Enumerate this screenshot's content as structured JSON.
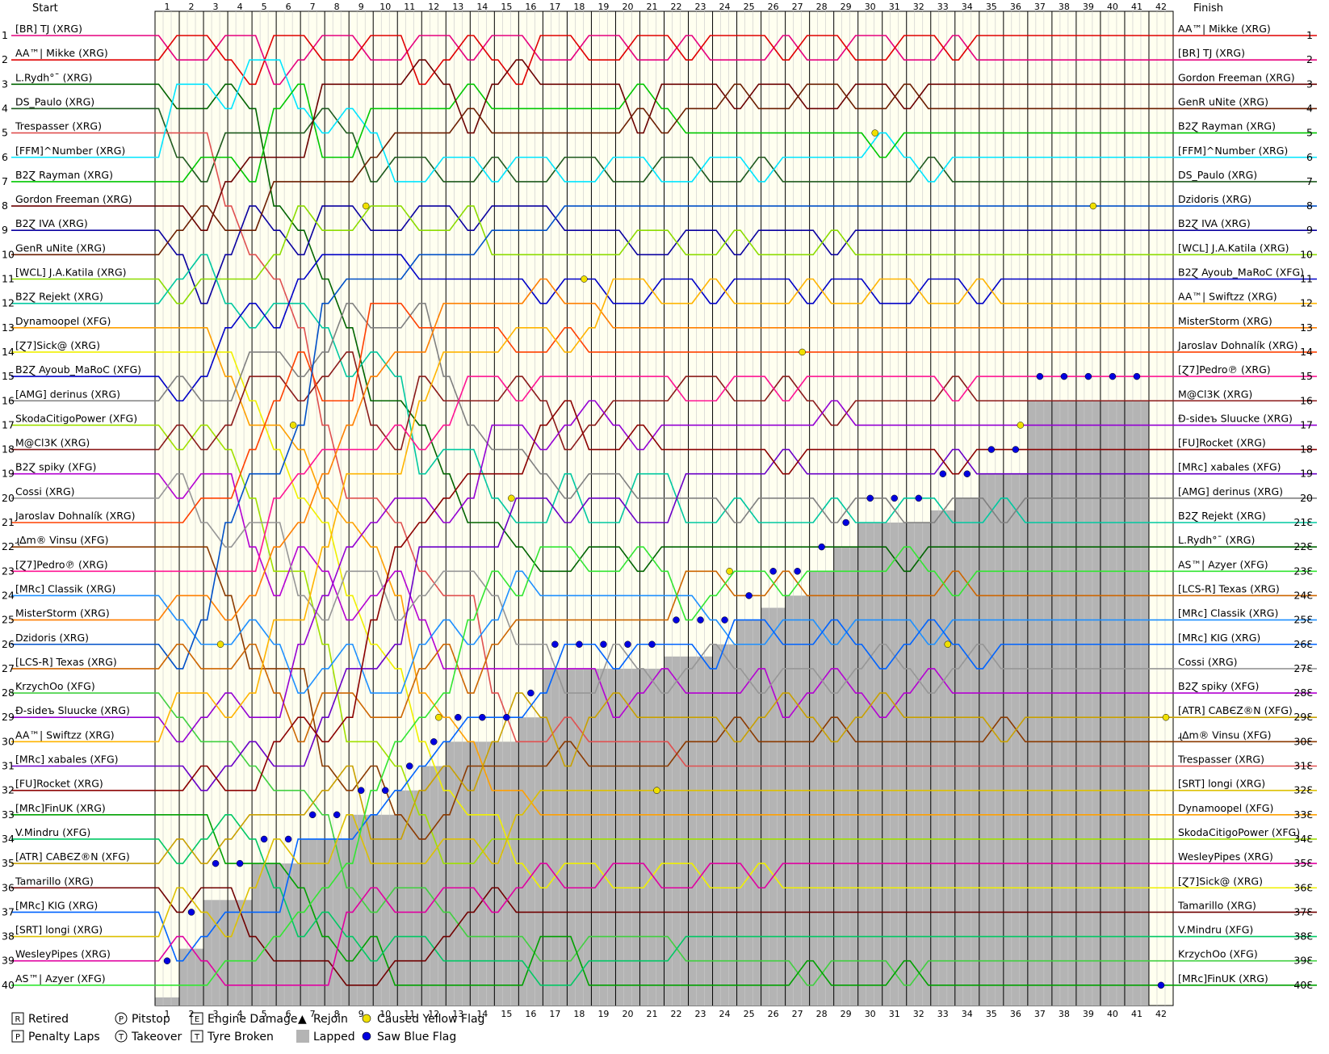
{
  "chart_data": {
    "type": "line",
    "headers": {
      "start": "Start",
      "finish": "Finish"
    },
    "laps": 42,
    "positions": 40,
    "start_order": [
      "[BR] TJ (XRG)",
      "AA™| Mikke (XRG)",
      "L.Rydh°¯ (XRG)",
      "DS_Paulo (XRG)",
      "Trespasser (XRG)",
      "[FFM]^Number (XRG)",
      "B2Ɀ Rayman (XRG)",
      "Gordon Freeman (XRG)",
      "B2Ɀ IVA (XRG)",
      "GenR uNite (XRG)",
      "[WCL] J.A.Katila (XRG)",
      "B2Ɀ Rejekt (XRG)",
      "Dynamoopel (XFG)",
      "[Ɀ7]Sick@ (XRG)",
      "B2Ɀ Ayoub_MaRoC (XFG)",
      "[AMG] derinus (XRG)",
      "SkodaCitigoPower (XFG)",
      "M@Cl3K (XRG)",
      "B2Ɀ spiky (XFG)",
      "Cossi (XRG)",
      "Jaroslav Dohnalík (XRG)",
      "ɻ∆m® Vinsu (XFG)",
      "[Ɀ7]Pedro℗ (XRG)",
      "[MRc] Classik (XRG)",
      "MisterStorm (XRG)",
      "Dzidoris (XRG)",
      "[LCS-R] Texas (XRG)",
      "KrzychOo (XFG)",
      "Đ-sideъ Sluucke (XRG)",
      "AA™| Swiftzz (XRG)",
      "[MRc] xabales (XFG)",
      "[FU]Rocket (XRG)",
      "[MRc]FinUK (XRG)",
      "V.Mindru (XFG)",
      "[ATR] CABЄZ®N (XFG)",
      "Tamarillo (XRG)",
      "[MRc] KIG (XRG)",
      "[SRT] longi (XRG)",
      "WesleyPipes (XRG)",
      "AS™| Azyer (XFG)"
    ],
    "finish_order": [
      "AA™| Mikke (XRG)",
      "[BR] TJ (XRG)",
      "Gordon Freeman (XRG)",
      "GenR uNite (XRG)",
      "B2Ɀ Rayman (XRG)",
      "[FFM]^Number (XRG)",
      "DS_Paulo (XRG)",
      "Dzidoris (XRG)",
      "B2Ɀ IVA (XRG)",
      "[WCL] J.A.Katila (XRG)",
      "B2Ɀ Ayoub_MaRoC (XFG)",
      "AA™| Swiftzz (XRG)",
      "MisterStorm (XRG)",
      "Jaroslav Dohnalík (XRG)",
      "[Ɀ7]Pedro℗ (XRG)",
      "M@Cl3K (XRG)",
      "Đ-sideъ Sluucke (XRG)",
      "[FU]Rocket (XRG)",
      "[MRc] xabales (XFG)",
      "[AMG] derinus (XRG)",
      "B2Ɀ Rejekt (XRG)",
      "L.Rydh°¯ (XRG)",
      "AS™| Azyer (XFG)",
      "[LCS-R] Texas (XRG)",
      "[MRc] Classik (XRG)",
      "[MRc] KIG (XRG)",
      "Cossi (XRG)",
      "B2Ɀ spiky (XFG)",
      "[ATR] CABЄZ®N (XFG)",
      "ɻ∆m® Vinsu (XFG)",
      "Trespasser (XRG)",
      "[SRT] longi (XRG)",
      "Dynamoopel (XFG)",
      "SkodaCitigoPower (XFG)",
      "WesleyPipes (XRG)",
      "[Ɀ7]Sick@ (XRG)",
      "Tamarillo (XRG)",
      "V.Mindru (XFG)",
      "KrzychOo (XFG)",
      "[MRc]FinUK (XRG)"
    ],
    "finish_pos_labels": [
      "1",
      "2",
      "3",
      "4",
      "5",
      "6",
      "7",
      "8",
      "9",
      "10",
      "11",
      "12",
      "13",
      "14",
      "15",
      "16",
      "17",
      "18",
      "19",
      "20",
      "21Ɛ",
      "22Ɛ",
      "23Ɛ",
      "24Ɛ",
      "25Ɛ",
      "26Ɛ",
      "27Ɛ",
      "28Ɛ",
      "29Ɛ",
      "30Ɛ",
      "31Ɛ",
      "32Ɛ",
      "33Ɛ",
      "34Ɛ",
      "35Ɛ",
      "36Ɛ",
      "37Ɛ",
      "38Ɛ",
      "39Ɛ",
      "40Ɛ"
    ],
    "colors": [
      "#e6007e",
      "#e00000",
      "#006400",
      "#1e5a1e",
      "#e05050",
      "#00e5ff",
      "#00c800",
      "#6b0000",
      "#0a00a0",
      "#6b1e00",
      "#8cdc00",
      "#00c8a0",
      "#ffa000",
      "#f0f000",
      "#0000c8",
      "#808080",
      "#a0e000",
      "#8b1a1a",
      "#b400d2",
      "#969696",
      "#ff4000",
      "#8b3a00",
      "#ff1493",
      "#1e90ff",
      "#ff7f00",
      "#0050c8",
      "#cd6600",
      "#40d040",
      "#9400d3",
      "#ffb400",
      "#6a00c8",
      "#8b0000",
      "#00a000",
      "#00c864",
      "#c8a000",
      "#700000",
      "#0064ff",
      "#ddc000",
      "#e000a0",
      "#32e632"
    ],
    "lapped_threshold": [
      40.5,
      38.5,
      36.5,
      36.5,
      35,
      35,
      34,
      34,
      33,
      33,
      32,
      31,
      30,
      30,
      30,
      29,
      27,
      27,
      27,
      27,
      27,
      26.5,
      26.5,
      26,
      25,
      24.5,
      24,
      23,
      22,
      21,
      21,
      21,
      20.5,
      20,
      19,
      19,
      16,
      16,
      16,
      16,
      16,
      41
    ],
    "legend": [
      {
        "symbol": "R",
        "label": "Retired"
      },
      {
        "symbol": "P",
        "label": "Penalty Laps"
      },
      {
        "symbol": "P",
        "label": "Pitstop"
      },
      {
        "symbol": "T",
        "label": "Takeover"
      },
      {
        "symbol": "E",
        "label": "Engine Damage"
      },
      {
        "symbol": "T",
        "label": "Tyre Broken"
      },
      {
        "symbol": "▲",
        "label": "Rejoin"
      },
      {
        "symbol": "",
        "label": "Lapped"
      },
      {
        "symbol": "",
        "label": "Caused Yellow Flag"
      },
      {
        "symbol": "",
        "label": "Saw Blue Flag"
      }
    ],
    "marker_colors": {
      "yellow_flag": "#f0e000",
      "blue_flag": "#0000e0",
      "lapped": "#b4b4b4",
      "grid": "#000000"
    }
  }
}
